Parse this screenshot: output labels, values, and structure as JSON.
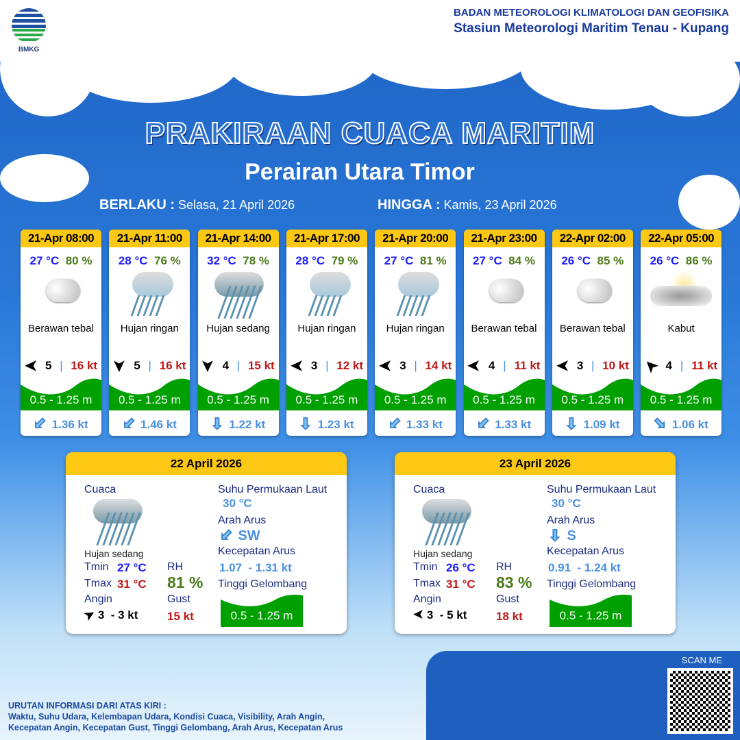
{
  "header": {
    "org_line1": "BADAN METEOROLOGI KLIMATOLOGI DAN GEOFISIKA",
    "org_line2": "Stasiun Meteorologi Maritim Tenau - Kupang",
    "logo_text": "BMKG"
  },
  "title": "PRAKIRAAN CUACA MARITIM",
  "subtitle": "Perairan Utara Timor",
  "validity": {
    "from_label": "BERLAKU :",
    "from": "Selasa, 21 April 2026",
    "to_label": "HINGGA :",
    "to": "Kamis, 23 April 2026"
  },
  "colors": {
    "header_yellow": "#fcc813",
    "wave_green": "#00a000",
    "temp_blue": "#1a1aff",
    "rh_green": "#4a7a1a",
    "gust_red": "#c01818",
    "current_blue": "#4a90e0"
  },
  "forecasts": [
    {
      "time": "21-Apr 08:00",
      "temp": "27 °C",
      "rh": "80 %",
      "icon": "cloudy-icon",
      "weather": "Berawan tebal",
      "wind_dir": "E",
      "wind": "5",
      "gust": "16 kt",
      "wave": "0.5 - 1.25 m",
      "current_dir": "SW",
      "current": "1.36 kt"
    },
    {
      "time": "21-Apr 11:00",
      "temp": "28 °C",
      "rh": "76 %",
      "icon": "light-rain-icon",
      "weather": "Hujan ringan",
      "wind_dir": "N",
      "wind": "5",
      "gust": "16 kt",
      "wave": "0.5 - 1.25 m",
      "current_dir": "SW",
      "current": "1.46 kt"
    },
    {
      "time": "21-Apr 14:00",
      "temp": "32 °C",
      "rh": "78 %",
      "icon": "moderate-rain-icon",
      "weather": "Hujan sedang",
      "wind_dir": "N",
      "wind": "4",
      "gust": "15 kt",
      "wave": "0.5 - 1.25 m",
      "current_dir": "S",
      "current": "1.22 kt"
    },
    {
      "time": "21-Apr 17:00",
      "temp": "28 °C",
      "rh": "79 %",
      "icon": "light-rain-icon",
      "weather": "Hujan ringan",
      "wind_dir": "E",
      "wind": "3",
      "gust": "12 kt",
      "wave": "0.5 - 1.25 m",
      "current_dir": "S",
      "current": "1.23 kt"
    },
    {
      "time": "21-Apr 20:00",
      "temp": "27 °C",
      "rh": "81 %",
      "icon": "light-rain-icon",
      "weather": "Hujan ringan",
      "wind_dir": "E",
      "wind": "3",
      "gust": "14 kt",
      "wave": "0.5 - 1.25 m",
      "current_dir": "SW",
      "current": "1.33 kt"
    },
    {
      "time": "21-Apr 23:00",
      "temp": "27 °C",
      "rh": "84 %",
      "icon": "cloudy-icon",
      "weather": "Berawan tebal",
      "wind_dir": "E",
      "wind": "4",
      "gust": "11 kt",
      "wave": "0.5 - 1.25 m",
      "current_dir": "SW",
      "current": "1.33 kt"
    },
    {
      "time": "22-Apr 02:00",
      "temp": "26 °C",
      "rh": "85 %",
      "icon": "cloudy-icon",
      "weather": "Berawan tebal",
      "wind_dir": "E",
      "wind": "3",
      "gust": "10 kt",
      "wave": "0.5 - 1.25 m",
      "current_dir": "S",
      "current": "1.09 kt"
    },
    {
      "time": "22-Apr 05:00",
      "temp": "26 °C",
      "rh": "86 %",
      "icon": "fog-icon",
      "weather": "Kabut",
      "wind_dir": "SE",
      "wind": "4",
      "gust": "11 kt",
      "wave": "0.5 - 1.25 m",
      "current_dir": "SE",
      "current": "1.06 kt"
    }
  ],
  "labels": {
    "weather": "Cuaca",
    "tmin": "Tmin",
    "tmax": "Tmax",
    "wind": "Angin",
    "rh": "RH",
    "gust": "Gust",
    "sst": "Suhu Permukaan Laut",
    "current_dir": "Arah Arus",
    "current_speed": "Kecepatan Arus",
    "wave": "Tinggi Gelombang"
  },
  "daily": [
    {
      "date": "22 April 2026",
      "weather": "Hujan sedang",
      "icon": "moderate-rain-icon",
      "tmin": "27 °C",
      "tmax": "31 °C",
      "rh": "81 %",
      "wind_dir": "SW",
      "wind": "3  - 3 kt",
      "gust": "15 kt",
      "sst": "30 °C",
      "current_dir": "SW",
      "current_speed": "1.07  - 1.31 kt",
      "wave": "0.5 - 1.25 m"
    },
    {
      "date": "23 April 2026",
      "weather": "Hujan sedang",
      "icon": "moderate-rain-icon",
      "tmin": "26 °C",
      "tmax": "31 °C",
      "rh": "83 %",
      "wind_dir": "E",
      "wind": "3  - 5 kt",
      "gust": "18 kt",
      "sst": "30 °C",
      "current_dir": "S",
      "current_speed": "0.91  - 1.24 kt",
      "wave": "0.5 - 1.25 m"
    }
  ],
  "footer": {
    "scan": "SCAN ME",
    "note_title": "URUTAN INFORMASI DARI ATAS KIRI :",
    "note_line1": "Waktu, Suhu Udara, Kelembapan Udara, Kondisi Cuaca, Visibility, Arah Angin,",
    "note_line2": "Kecepatan Angin, Kecepatan Gust, Tinggi Gelombang, Arah Arus, Kecepatan Arus"
  }
}
